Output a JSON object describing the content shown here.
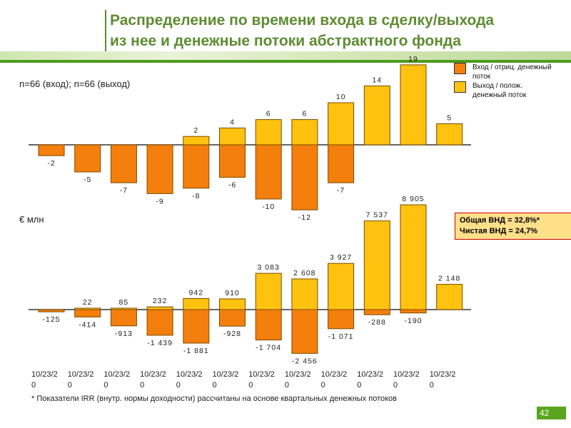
{
  "title_line1": "Распределение по времени входа в сделку/выхода",
  "title_line2": "из нее и денежные потоки абстрактного фонда",
  "n_label": "n=66 (вход); n=66 (выход)",
  "unit_label": "€ млн",
  "legend": [
    {
      "label": "Вход / отриц. денежный поток",
      "color": "#f47f0c"
    },
    {
      "label": "Выход / полож. денежный поток",
      "color": "#ffc20e"
    }
  ],
  "irr_box": {
    "line1": "Общая ВНД = 32,8%*",
    "line2": "Чистая ВНД = 24,7%"
  },
  "footnote": "* Показатели IRR (внутр. нормы доходности) рассчитаны на основе квартальных денежных потоков",
  "page_number": "42",
  "chart_data": [
    {
      "type": "bar",
      "categories": [
        "10/23/20",
        "10/23/20",
        "10/23/20",
        "10/23/20",
        "10/23/20",
        "10/23/20",
        "10/23/20",
        "10/23/20",
        "10/23/20",
        "10/23/20",
        "10/23/20",
        "10/23/20"
      ],
      "series": [
        {
          "name": "Выход / полож. денежный поток",
          "values": [
            null,
            null,
            null,
            null,
            2,
            4,
            6,
            6,
            10,
            14,
            19,
            5
          ]
        },
        {
          "name": "Вход / отриц. денежный поток",
          "values": [
            -2,
            -5,
            -7,
            -9,
            -8,
            -6,
            -10,
            -12,
            -7,
            null,
            null,
            null
          ]
        }
      ]
    },
    {
      "type": "bar",
      "categories": [
        "10/23/20",
        "10/23/20",
        "10/23/20",
        "10/23/20",
        "10/23/20",
        "10/23/20",
        "10/23/20",
        "10/23/20",
        "10/23/20",
        "10/23/20",
        "10/23/20",
        "10/23/20"
      ],
      "series": [
        {
          "name": "Выход / полож. денежный поток",
          "values": [
            null,
            22,
            85,
            232,
            942,
            910,
            3083,
            2608,
            3927,
            7537,
            8905,
            2148
          ]
        },
        {
          "name": "Вход / отриц. денежный поток",
          "values": [
            -125,
            -414,
            -913,
            -1439,
            -1881,
            -928,
            -1704,
            -2456,
            -1071,
            -288,
            -190,
            null
          ]
        }
      ]
    }
  ]
}
